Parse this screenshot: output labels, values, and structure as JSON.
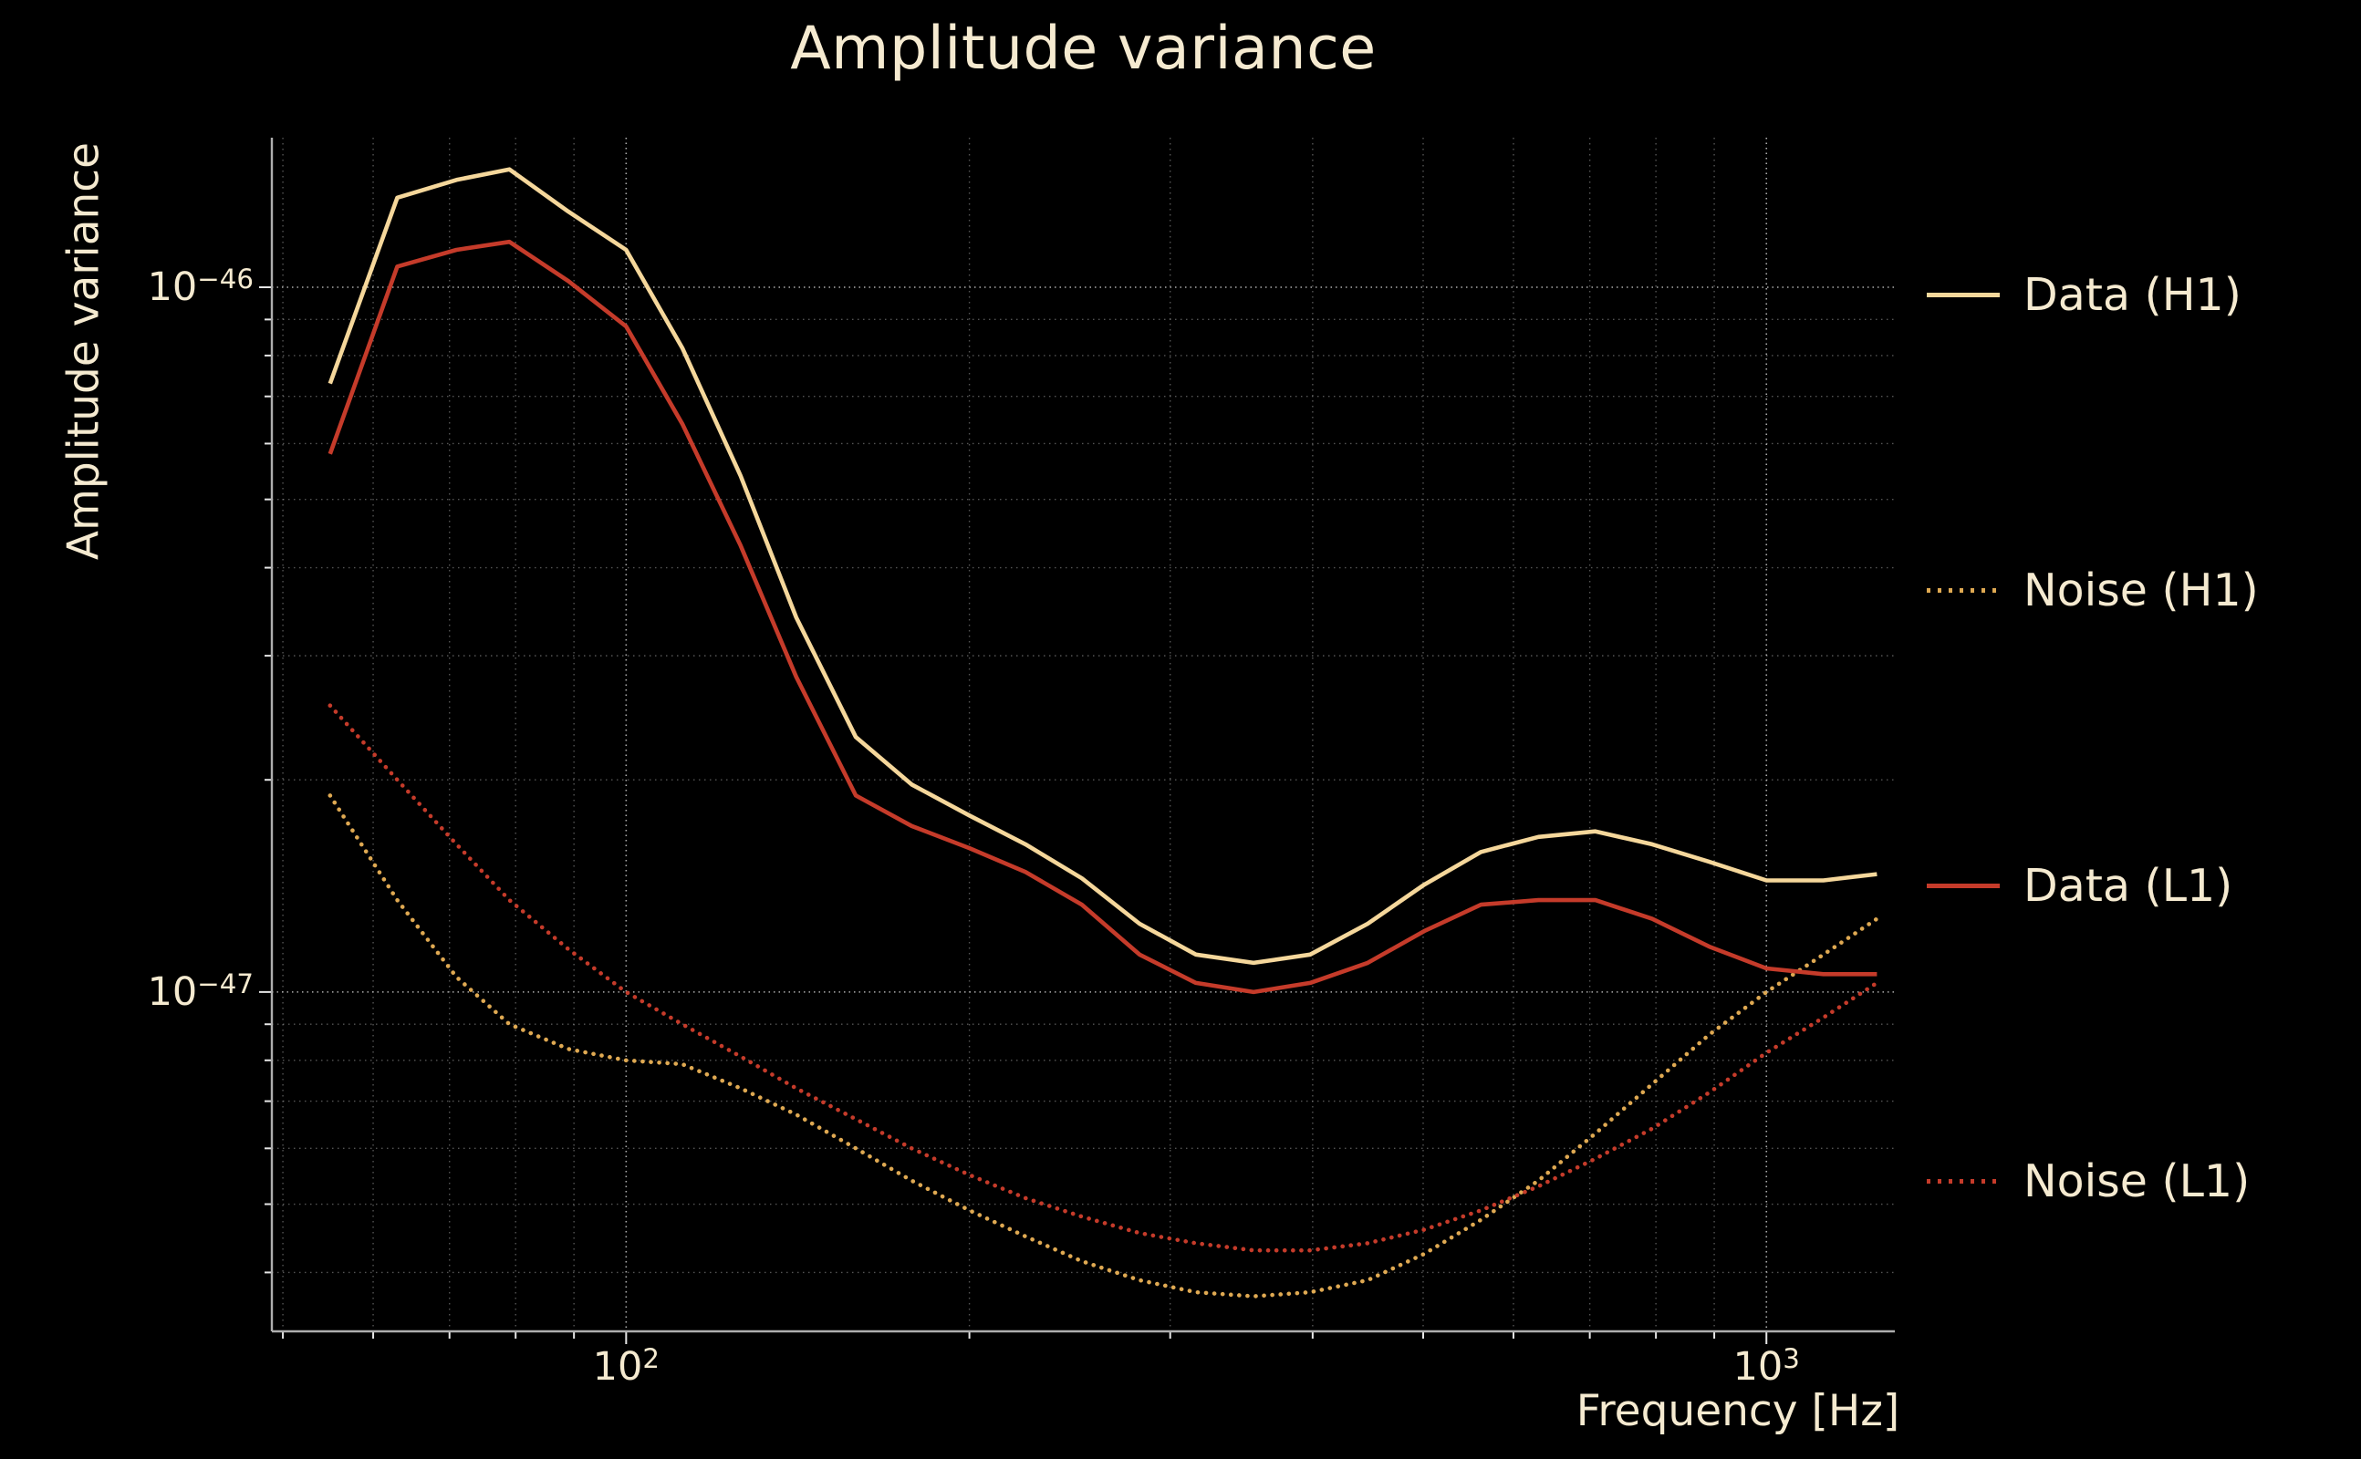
{
  "colors": {
    "background": "#000000",
    "text": "#f5ead0",
    "grid": "#bdbdbd",
    "spine": "#aeaeae",
    "h1_data": "#f5d79b",
    "h1_noise": "#dfa952",
    "l1_data": "#c53b2a",
    "l1_noise": "#c53b2a"
  },
  "chart_data": {
    "type": "line",
    "title": "Amplitude variance",
    "xlabel": "Frequency [Hz]",
    "ylabel": "Amplitude variance",
    "x_scale": "log",
    "y_scale": "log",
    "xlim": [
      48.9,
      1296
    ],
    "ylim": [
      3.3e-48,
      1.63e-46
    ],
    "grid": true,
    "legend_position": "right-outside",
    "frequencies_hz": [
      55,
      63,
      71,
      79,
      89,
      100,
      112,
      126,
      141,
      159,
      178,
      200,
      224,
      251,
      282,
      316,
      355,
      398,
      447,
      501,
      562,
      631,
      708,
      794,
      891,
      1000,
      1122,
      1250
    ],
    "series": [
      {
        "name": "Data (H1)",
        "style": "solid",
        "color": "#f5d79b",
        "values": [
          7.3e-47,
          1.34e-46,
          1.42e-46,
          1.47e-46,
          1.28e-46,
          1.13e-46,
          8.2e-47,
          5.4e-47,
          3.4e-47,
          2.3e-47,
          1.97e-47,
          1.78e-47,
          1.62e-47,
          1.45e-47,
          1.25e-47,
          1.13e-47,
          1.1e-47,
          1.13e-47,
          1.25e-47,
          1.42e-47,
          1.58e-47,
          1.66e-47,
          1.69e-47,
          1.62e-47,
          1.53e-47,
          1.44e-47,
          1.44e-47,
          1.47e-47
        ]
      },
      {
        "name": "Noise (H1)",
        "style": "dotted",
        "color": "#dfa952",
        "values": [
          1.9e-47,
          1.35e-47,
          1.05e-47,
          9e-48,
          8.3e-48,
          8e-48,
          7.9e-48,
          7.3e-48,
          6.7e-48,
          6e-48,
          5.4e-48,
          4.9e-48,
          4.5e-48,
          4.15e-48,
          3.9e-48,
          3.75e-48,
          3.7e-48,
          3.75e-48,
          3.9e-48,
          4.25e-48,
          4.75e-48,
          5.4e-48,
          6.3e-48,
          7.4e-48,
          8.7e-48,
          1e-47,
          1.13e-47,
          1.27e-47
        ]
      },
      {
        "name": "Data (L1)",
        "style": "solid",
        "color": "#c53b2a",
        "values": [
          5.8e-47,
          1.07e-46,
          1.13e-46,
          1.16e-46,
          1.02e-46,
          8.8e-47,
          6.4e-47,
          4.3e-47,
          2.8e-47,
          1.9e-47,
          1.72e-47,
          1.6e-47,
          1.48e-47,
          1.33e-47,
          1.13e-47,
          1.03e-47,
          1e-47,
          1.03e-47,
          1.1e-47,
          1.22e-47,
          1.33e-47,
          1.35e-47,
          1.35e-47,
          1.27e-47,
          1.16e-47,
          1.08e-47,
          1.06e-47,
          1.06e-47
        ]
      },
      {
        "name": "Noise (L1)",
        "style": "dotted",
        "color": "#c53b2a",
        "values": [
          2.55e-47,
          2e-47,
          1.62e-47,
          1.35e-47,
          1.15e-47,
          1e-47,
          9e-48,
          8.1e-48,
          7.3e-48,
          6.6e-48,
          6e-48,
          5.5e-48,
          5.1e-48,
          4.8e-48,
          4.55e-48,
          4.4e-48,
          4.3e-48,
          4.3e-48,
          4.4e-48,
          4.6e-48,
          4.9e-48,
          5.3e-48,
          5.8e-48,
          6.4e-48,
          7.2e-48,
          8.2e-48,
          9.2e-48,
          1.03e-47
        ]
      }
    ],
    "x_ticks": [
      {
        "value": 100,
        "label_base": "10",
        "label_exp": "2"
      },
      {
        "value": 1000,
        "label_base": "10",
        "label_exp": "3"
      }
    ],
    "y_ticks": [
      {
        "value": 1e-46,
        "label_base": "10",
        "label_exp": "−46"
      },
      {
        "value": 1e-47,
        "label_base": "10",
        "label_exp": "−47"
      }
    ],
    "x_minor_gridlines": [
      50,
      60,
      70,
      80,
      90,
      200,
      300,
      400,
      500,
      600,
      700,
      800,
      900
    ],
    "y_minor_gridlines": [
      4e-48,
      5e-48,
      6e-48,
      7e-48,
      8e-48,
      9e-48,
      2e-47,
      3e-47,
      4e-47,
      5e-47,
      6e-47,
      7e-47,
      8e-47,
      9e-47
    ]
  },
  "legend": {
    "items": [
      "Data (H1)",
      "Noise (H1)",
      "Data (L1)",
      "Noise (L1)"
    ]
  }
}
